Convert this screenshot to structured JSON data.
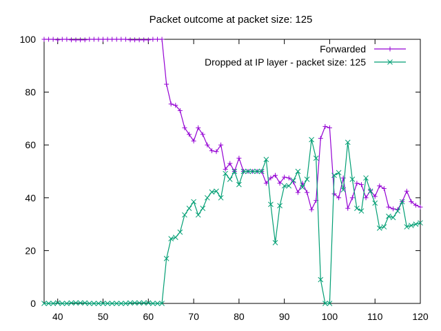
{
  "chart_data": {
    "type": "line",
    "title": "Packet outcome at packet size: 125",
    "xlabel": "",
    "ylabel": "",
    "xlim": [
      37,
      120
    ],
    "ylim": [
      0,
      100
    ],
    "x_ticks": [
      40,
      50,
      60,
      70,
      80,
      90,
      100,
      110,
      120
    ],
    "y_ticks": [
      0,
      20,
      40,
      60,
      80,
      100
    ],
    "grid": false,
    "legend": "top-right",
    "x": [
      37,
      38,
      39,
      40,
      41,
      42,
      43,
      44,
      45,
      46,
      47,
      48,
      49,
      50,
      51,
      52,
      53,
      54,
      55,
      56,
      57,
      58,
      59,
      60,
      61,
      62,
      63,
      64,
      65,
      66,
      67,
      68,
      69,
      70,
      71,
      72,
      73,
      74,
      75,
      76,
      77,
      78,
      79,
      80,
      81,
      82,
      83,
      84,
      85,
      86,
      87,
      88,
      89,
      90,
      91,
      92,
      93,
      94,
      95,
      96,
      97,
      98,
      99,
      100,
      101,
      102,
      103,
      104,
      105,
      106,
      107,
      108,
      109,
      110,
      111,
      112,
      113,
      114,
      115,
      116,
      117,
      118,
      119,
      120
    ],
    "series": [
      {
        "name": "Forwarded",
        "color": "#9400d3",
        "marker": "plus",
        "values": [
          100,
          100,
          100,
          99.8,
          100,
          100,
          99.8,
          99.8,
          99.8,
          99.8,
          100,
          100,
          100,
          100,
          100,
          100,
          100,
          100,
          100,
          99.8,
          99.8,
          99.8,
          99.8,
          99.8,
          100,
          100,
          100,
          83,
          75.5,
          75,
          73,
          66.5,
          64,
          61.5,
          66.5,
          64,
          60,
          57.8,
          57.5,
          60,
          50.8,
          53,
          50,
          55,
          50,
          50,
          50,
          50,
          50,
          45.5,
          47.5,
          48.5,
          45.5,
          47.8,
          47.5,
          46,
          42,
          45.5,
          42,
          35.5,
          39,
          62.5,
          67,
          66.5,
          41.5,
          40,
          47.5,
          36,
          40,
          45.5,
          45,
          40,
          42.8,
          40.5,
          44.5,
          43.5,
          36.5,
          35.8,
          35.5,
          38.5,
          42.5,
          38.5,
          37.2,
          36.5
        ]
      },
      {
        "name": "Dropped at IP layer - packet size: 125",
        "color": "#009e73",
        "marker": "x",
        "values": [
          0,
          0,
          0,
          0.2,
          0,
          0,
          0.2,
          0.2,
          0.2,
          0.2,
          0,
          0,
          0,
          0,
          0,
          0,
          0,
          0,
          0,
          0.2,
          0.2,
          0.2,
          0.2,
          0.2,
          0,
          0,
          0,
          17,
          24.5,
          25,
          27,
          33.5,
          36,
          38.5,
          33.5,
          36,
          40,
          42.2,
          42.5,
          40,
          49.2,
          47,
          50,
          45,
          50,
          50,
          50,
          50,
          50,
          54.5,
          37.5,
          23,
          37,
          44.5,
          44.5,
          46.5,
          50,
          44,
          47,
          62,
          55,
          9,
          0,
          0,
          48.5,
          49.5,
          43,
          61,
          47,
          36,
          35,
          47.5,
          42.5,
          38,
          28.5,
          29,
          33,
          32.5,
          35,
          38.5,
          29,
          29.5,
          30,
          30.5
        ]
      }
    ]
  }
}
